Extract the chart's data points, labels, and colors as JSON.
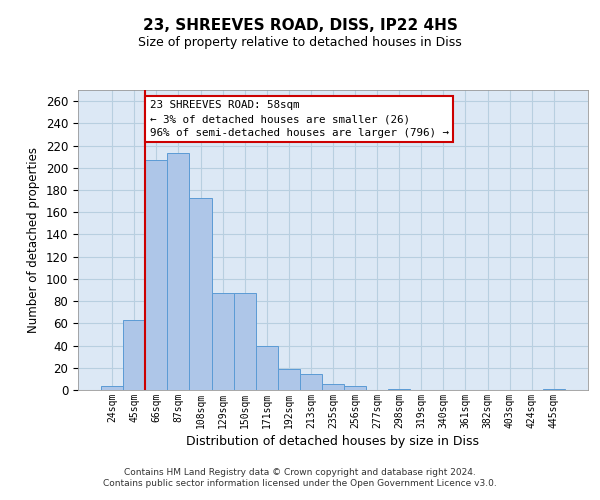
{
  "title1": "23, SHREEVES ROAD, DISS, IP22 4HS",
  "title2": "Size of property relative to detached houses in Diss",
  "xlabel": "Distribution of detached houses by size in Diss",
  "ylabel": "Number of detached properties",
  "categories": [
    "24sqm",
    "45sqm",
    "66sqm",
    "87sqm",
    "108sqm",
    "129sqm",
    "150sqm",
    "171sqm",
    "192sqm",
    "213sqm",
    "235sqm",
    "256sqm",
    "277sqm",
    "298sqm",
    "319sqm",
    "340sqm",
    "361sqm",
    "382sqm",
    "403sqm",
    "424sqm",
    "445sqm"
  ],
  "values": [
    4,
    63,
    207,
    213,
    173,
    87,
    87,
    40,
    19,
    14,
    5,
    4,
    0,
    1,
    0,
    0,
    0,
    0,
    0,
    0,
    1
  ],
  "bar_color": "#aec6e8",
  "bar_edge_color": "#5b9bd5",
  "vline_pos": 1.5,
  "vline_color": "#cc0000",
  "annotation_text": "23 SHREEVES ROAD: 58sqm\n← 3% of detached houses are smaller (26)\n96% of semi-detached houses are larger (796) →",
  "annotation_box_facecolor": "#ffffff",
  "annotation_box_edgecolor": "#cc0000",
  "plot_bg_color": "#dce8f5",
  "fig_bg_color": "#ffffff",
  "grid_color": "#b8cfe0",
  "footer": "Contains HM Land Registry data © Crown copyright and database right 2024.\nContains public sector information licensed under the Open Government Licence v3.0.",
  "ylim": [
    0,
    270
  ],
  "yticks": [
    0,
    20,
    40,
    60,
    80,
    100,
    120,
    140,
    160,
    180,
    200,
    220,
    240,
    260
  ]
}
